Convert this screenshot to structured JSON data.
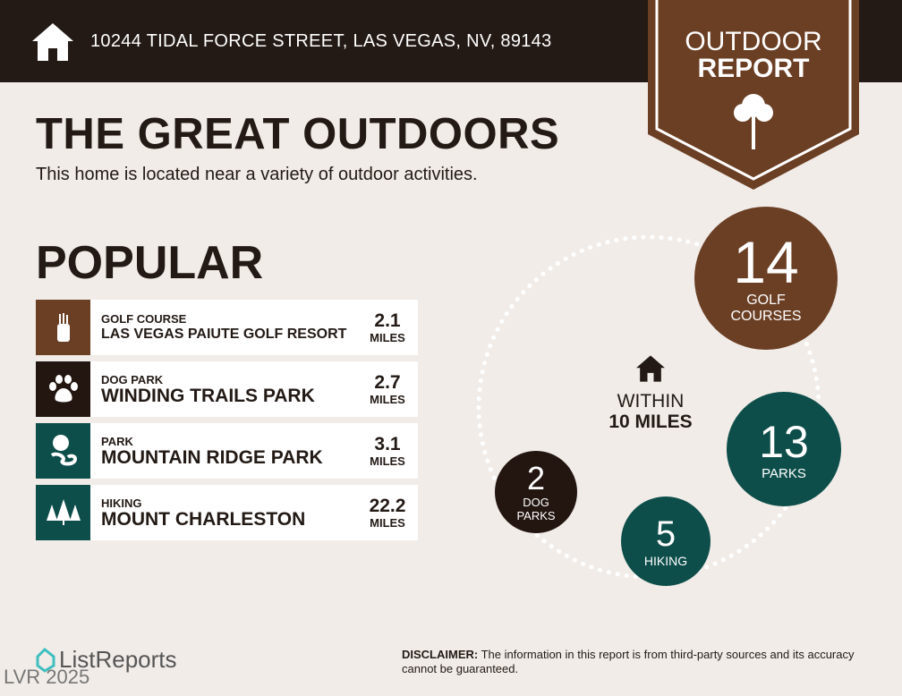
{
  "header": {
    "address": "10244 TIDAL FORCE STREET, LAS VEGAS, NV, 89143",
    "icon": "home-icon"
  },
  "badge": {
    "line1": "OUTDOOR",
    "line2": "REPORT",
    "icon": "tree-icon"
  },
  "title": "THE GREAT OUTDOORS",
  "subtitle": "This home is located near a variety of outdoor activities.",
  "popular": {
    "heading": "POPULAR",
    "items": [
      {
        "category": "GOLF COURSE",
        "name": "LAS VEGAS PAIUTE GOLF RESORT",
        "distance": "2.1",
        "unit": "MILES",
        "icon": "golf-bag-icon",
        "color": "#6b3f24"
      },
      {
        "category": "DOG PARK",
        "name": "WINDING TRAILS PARK",
        "distance": "2.7",
        "unit": "MILES",
        "icon": "paw-icon",
        "color": "#231510"
      },
      {
        "category": "PARK",
        "name": "MOUNTAIN RIDGE PARK",
        "distance": "3.1",
        "unit": "MILES",
        "icon": "park-icon",
        "color": "#0d4e4a"
      },
      {
        "category": "HIKING",
        "name": "MOUNT CHARLESTON",
        "distance": "22.2",
        "unit": "MILES",
        "icon": "pine-trees-icon",
        "color": "#0d4e4a"
      }
    ]
  },
  "radius": {
    "line1": "WITHIN",
    "line2": "10 MILES"
  },
  "counts": [
    {
      "count": "14",
      "label1": "GOLF",
      "label2": "COURSES"
    },
    {
      "count": "13",
      "label1": "PARKS",
      "label2": ""
    },
    {
      "count": "5",
      "label1": "HIKING",
      "label2": ""
    },
    {
      "count": "2",
      "label1": "DOG",
      "label2": "PARKS"
    }
  ],
  "footer": {
    "brand": "ListReports",
    "watermark": "LVR 2025",
    "disclaimer_label": "DISCLAIMER:",
    "disclaimer": " The information in this report is from third-party sources and its accuracy cannot be guaranteed."
  },
  "colors": {
    "dark": "#231a15",
    "brown": "#6b3f24",
    "teal": "#0d4e4a",
    "background": "#f1ece8"
  }
}
